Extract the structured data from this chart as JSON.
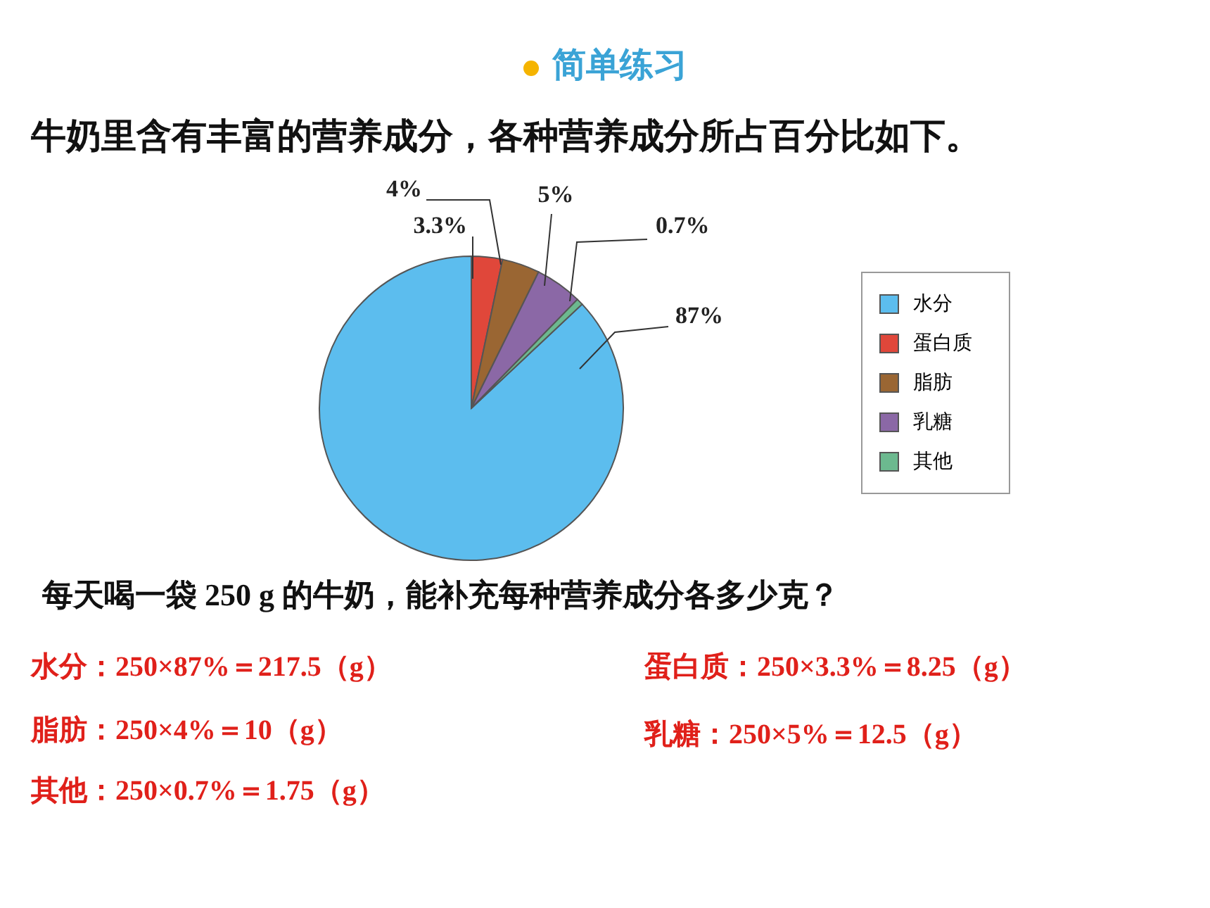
{
  "chart_data": {
    "type": "pie",
    "title": "简单练习",
    "subtitle": "牛奶里含有丰富的营养成分，各种营养成分所占百分比如下。",
    "categories": [
      "水分",
      "蛋白质",
      "脂肪",
      "乳糖",
      "其他"
    ],
    "values": [
      87,
      3.3,
      4,
      5,
      0.7
    ],
    "colors": [
      "#5cbdee",
      "#e0473a",
      "#9a6633",
      "#8b68a6",
      "#6cb98f"
    ],
    "value_labels": [
      "87%",
      "3.3%",
      "4%",
      "5%",
      "0.7%"
    ],
    "legend": "right",
    "annotations": [
      "每天喝一袋 250 g 的牛奶，能补充每种营养成分各多少克？",
      "水分：250×87%＝217.5（g）",
      "蛋白质：250×3.3%＝8.25（g）",
      "脂肪：250×4%＝10（g）",
      "乳糖：250×5%＝12.5（g）",
      "其他：250×0.7%＝1.75（g）"
    ]
  }
}
